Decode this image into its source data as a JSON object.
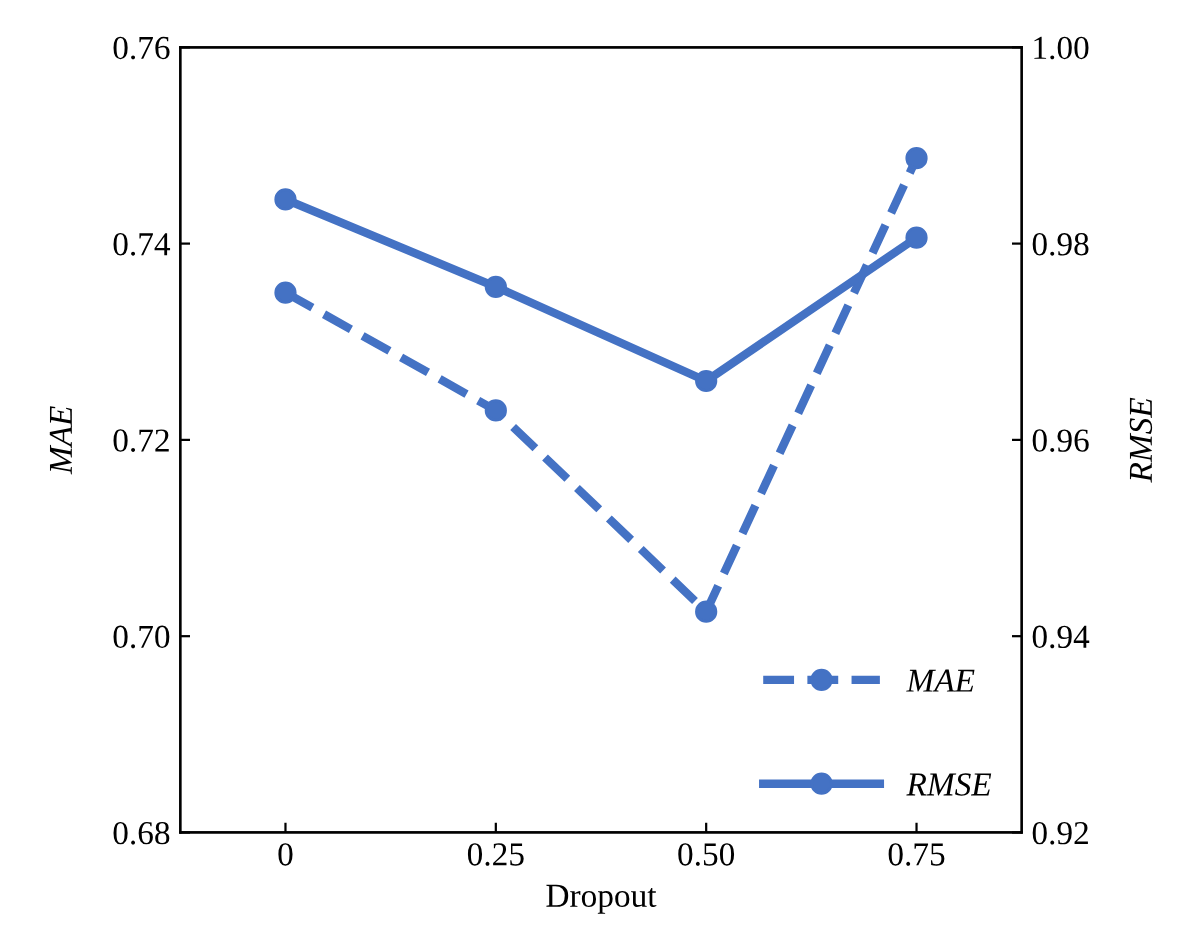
{
  "chart_data": {
    "type": "line",
    "xlabel": "Dropout",
    "ylabel": "MAE",
    "y2label": "RMSE",
    "categories": [
      "0",
      "0.25",
      "0.50",
      "0.75"
    ],
    "series": [
      {
        "name": "MAE",
        "color": "#4472c4",
        "values": [
          0.735,
          0.723,
          0.7025,
          0.7487
        ],
        "line_style": "dashed"
      },
      {
        "name": "RMSE",
        "color": "#4472c4",
        "values": [
          0.9845,
          0.9756,
          0.966,
          0.9806
        ],
        "axis": "y2",
        "line_style": "solid"
      }
    ],
    "ylim": [
      0.68,
      0.76
    ],
    "yticks": [
      0.68,
      {
        "value": 0.7,
        "label": "0.70"
      },
      0.72,
      0.74,
      0.76
    ],
    "y2lim": [
      0.92,
      1.0
    ],
    "y2ticks": [
      0.92,
      0.94,
      0.96,
      0.98,
      {
        "value": 1.0,
        "label": "1.00"
      }
    ],
    "marker": "circle",
    "grid": false,
    "legend": "bottom right"
  }
}
